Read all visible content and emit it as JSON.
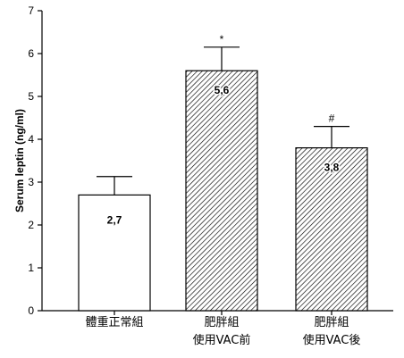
{
  "chart_data": {
    "type": "bar",
    "title": "",
    "xlabel": "",
    "ylabel": "Serum leptin (ng/ml)",
    "ylim": [
      0,
      7
    ],
    "yticks": [
      "0",
      "1",
      "2",
      "3",
      "4",
      "5",
      "6",
      "7"
    ],
    "categories": [
      [
        "體重正常組"
      ],
      [
        "肥胖組",
        "使用VAC前"
      ],
      [
        "肥胖組",
        "使用VAC後"
      ]
    ],
    "values": [
      2.7,
      5.6,
      3.8
    ],
    "value_labels": [
      "2,7",
      "5,6",
      "3,8"
    ],
    "error_upper": [
      0.43,
      0.55,
      0.5
    ],
    "significance": [
      "",
      "*",
      "#"
    ],
    "bar_fills": [
      "none",
      "hatched",
      "hatched"
    ],
    "grid": false,
    "colors": {
      "axis": "#000000",
      "bar_fill": "#ffffff",
      "hatch": "#000000"
    }
  }
}
